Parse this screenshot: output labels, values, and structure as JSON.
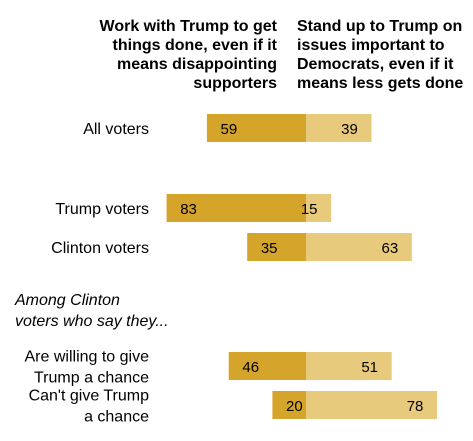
{
  "chart_data": {
    "type": "bar",
    "subtype": "diverging-stacked-horizontal",
    "series": [
      {
        "name": "Work with Trump to get things done, even if it means disappointing supporters",
        "header_lines": [
          "Work with Trump to get",
          "things done, even if it",
          "means disappointing",
          "supporters"
        ],
        "color": "#D4A42B"
      },
      {
        "name": "Stand up to Trump on issues important to Democrats, even if it means less gets done",
        "header_lines": [
          "Stand up to Trump on",
          "issues important to",
          "Democrats, even if it",
          "means less gets done"
        ],
        "color": "#E8CA7C"
      }
    ],
    "rows": [
      {
        "label_lines": [
          "All voters"
        ],
        "values": [
          59,
          39
        ]
      },
      {
        "label_lines": [
          "Trump voters"
        ],
        "values": [
          83,
          15
        ]
      },
      {
        "label_lines": [
          "Clinton voters"
        ],
        "values": [
          35,
          63
        ]
      },
      {
        "label_lines": [
          "Are willing to give",
          "Trump a chance"
        ],
        "values": [
          46,
          51
        ]
      },
      {
        "label_lines": [
          "Can't give Trump",
          "a chance"
        ],
        "values": [
          20,
          78
        ]
      }
    ],
    "section_label_lines": [
      "Among Clinton",
      "voters who say they..."
    ],
    "value_range": [
      0,
      100
    ]
  }
}
